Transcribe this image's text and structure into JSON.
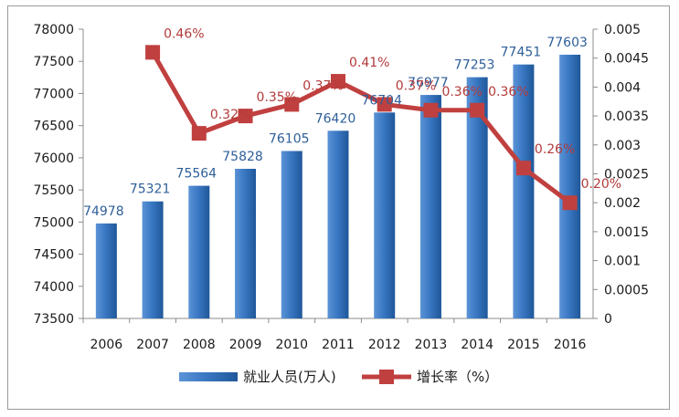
{
  "chart_data": {
    "type": "bar",
    "categories": [
      "2006",
      "2007",
      "2008",
      "2009",
      "2010",
      "2011",
      "2012",
      "2013",
      "2014",
      "2015",
      "2016"
    ],
    "series": [
      {
        "name": "就业人员(万人)",
        "type": "bar",
        "axis": "left",
        "color": "#3a78c3",
        "values": [
          74978,
          75321,
          75564,
          75828,
          76105,
          76420,
          76704,
          76977,
          77253,
          77451,
          77603
        ],
        "labels": [
          "74978",
          "75321",
          "75564",
          "75828",
          "76105",
          "76420",
          "76704",
          "76977",
          "77253",
          "77451",
          "77603"
        ]
      },
      {
        "name": "增长率（%）",
        "type": "line",
        "axis": "right",
        "color": "#c0403f",
        "values": [
          null,
          0.0046,
          0.0032,
          0.0035,
          0.0037,
          0.0041,
          0.0037,
          0.0036,
          0.0036,
          0.0026,
          0.002
        ],
        "labels": [
          "",
          "0.46%",
          "0.32%",
          "0.35%",
          "0.37%",
          "0.41%",
          "0.37%",
          "0.36%",
          "0.36%",
          "0.26%",
          "0.20%"
        ]
      }
    ],
    "y_left": {
      "lim": [
        73500,
        78000
      ],
      "ticks": [
        "73500",
        "74000",
        "74500",
        "75000",
        "75500",
        "76000",
        "76500",
        "77000",
        "77500",
        "78000"
      ]
    },
    "y_right": {
      "lim": [
        0,
        0.005
      ],
      "ticks": [
        "0",
        "0.0005",
        "0.001",
        "0.0015",
        "0.002",
        "0.0025",
        "0.003",
        "0.0035",
        "0.004",
        "0.0045",
        "0.005"
      ]
    },
    "legend": "bottom",
    "grid": false
  }
}
